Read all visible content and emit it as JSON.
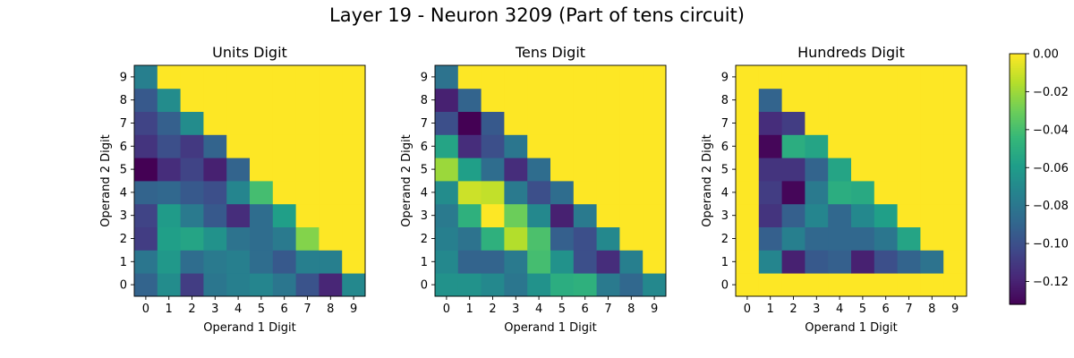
{
  "title": "Layer 19 - Neuron 3209 (Part of tens circuit)",
  "colormap": "viridis",
  "colorbar": {
    "min": -0.132,
    "max": 0.0,
    "ticks": [
      0.0,
      -0.02,
      -0.04,
      -0.06,
      -0.08,
      -0.1,
      -0.12
    ],
    "tick_labels": [
      "0.00",
      "−0.02",
      "−0.04",
      "−0.06",
      "−0.08",
      "−0.10",
      "−0.12"
    ]
  },
  "chart_data": [
    {
      "type": "heatmap",
      "title": "Units Digit",
      "xlabel": "Operand 1 Digit",
      "ylabel": "Operand 2 Digit",
      "x_categories": [
        "0",
        "1",
        "2",
        "3",
        "4",
        "5",
        "6",
        "7",
        "8",
        "9"
      ],
      "y_categories": [
        "0",
        "1",
        "2",
        "3",
        "4",
        "5",
        "6",
        "7",
        "8",
        "9"
      ],
      "y_axis_origin": "bottom",
      "values": [
        [
          -0.09,
          -0.068,
          -0.108,
          -0.08,
          -0.075,
          -0.072,
          -0.08,
          -0.098,
          -0.118,
          -0.07
        ],
        [
          -0.08,
          -0.062,
          -0.085,
          -0.078,
          -0.075,
          -0.085,
          -0.095,
          -0.075,
          -0.075,
          0.0
        ],
        [
          -0.108,
          -0.058,
          -0.055,
          -0.065,
          -0.082,
          -0.085,
          -0.078,
          -0.025,
          0.0,
          0.0
        ],
        [
          -0.105,
          -0.06,
          -0.078,
          -0.095,
          -0.115,
          -0.085,
          -0.058,
          0.0,
          0.0,
          0.0
        ],
        [
          -0.09,
          -0.088,
          -0.095,
          -0.1,
          -0.072,
          -0.04,
          0.0,
          0.0,
          0.0,
          0.0
        ],
        [
          -0.132,
          -0.115,
          -0.105,
          -0.12,
          -0.09,
          0.0,
          0.0,
          0.0,
          0.0,
          0.0
        ],
        [
          -0.112,
          -0.1,
          -0.11,
          -0.09,
          0.0,
          0.0,
          0.0,
          0.0,
          0.0,
          0.0
        ],
        [
          -0.105,
          -0.092,
          -0.068,
          0.0,
          0.0,
          0.0,
          0.0,
          0.0,
          0.0,
          0.0
        ],
        [
          -0.095,
          -0.068,
          0.0,
          0.0,
          0.0,
          0.0,
          0.0,
          0.0,
          0.0,
          0.0
        ],
        [
          -0.075,
          0.0,
          0.0,
          0.0,
          0.0,
          0.0,
          0.0,
          0.0,
          0.0,
          0.0
        ]
      ]
    },
    {
      "type": "heatmap",
      "title": "Tens Digit",
      "xlabel": "Operand 1 Digit",
      "ylabel": "Operand 2 Digit",
      "x_categories": [
        "0",
        "1",
        "2",
        "3",
        "4",
        "5",
        "6",
        "7",
        "8",
        "9"
      ],
      "y_categories": [
        "0",
        "1",
        "2",
        "3",
        "4",
        "5",
        "6",
        "7",
        "8",
        "9"
      ],
      "y_axis_origin": "bottom",
      "values": [
        [
          -0.065,
          -0.065,
          -0.07,
          -0.08,
          -0.065,
          -0.05,
          -0.048,
          -0.078,
          -0.088,
          -0.07
        ],
        [
          -0.07,
          -0.09,
          -0.09,
          -0.078,
          -0.04,
          -0.065,
          -0.1,
          -0.115,
          -0.075,
          0.0
        ],
        [
          -0.075,
          -0.082,
          -0.048,
          -0.015,
          -0.038,
          -0.092,
          -0.1,
          -0.07,
          0.0,
          0.0
        ],
        [
          -0.078,
          -0.048,
          0.0,
          -0.03,
          -0.07,
          -0.12,
          -0.078,
          0.0,
          0.0,
          0.0
        ],
        [
          -0.068,
          -0.01,
          -0.012,
          -0.078,
          -0.1,
          -0.085,
          0.0,
          0.0,
          0.0,
          0.0
        ],
        [
          -0.02,
          -0.058,
          -0.085,
          -0.115,
          -0.085,
          0.0,
          0.0,
          0.0,
          0.0,
          0.0
        ],
        [
          -0.055,
          -0.115,
          -0.1,
          -0.08,
          0.0,
          0.0,
          0.0,
          0.0,
          0.0,
          0.0
        ],
        [
          -0.1,
          -0.132,
          -0.095,
          0.0,
          0.0,
          0.0,
          0.0,
          0.0,
          0.0,
          0.0
        ],
        [
          -0.12,
          -0.09,
          0.0,
          0.0,
          0.0,
          0.0,
          0.0,
          0.0,
          0.0,
          0.0
        ],
        [
          -0.082,
          0.0,
          0.0,
          0.0,
          0.0,
          0.0,
          0.0,
          0.0,
          0.0,
          0.0
        ]
      ]
    },
    {
      "type": "heatmap",
      "title": "Hundreds Digit",
      "xlabel": "Operand 1 Digit",
      "ylabel": "Operand 2 Digit",
      "x_categories": [
        "0",
        "1",
        "2",
        "3",
        "4",
        "5",
        "6",
        "7",
        "8",
        "9"
      ],
      "y_categories": [
        "0",
        "1",
        "2",
        "3",
        "4",
        "5",
        "6",
        "7",
        "8",
        "9"
      ],
      "y_axis_origin": "bottom",
      "values": [
        [
          0.0,
          0.0,
          0.0,
          0.0,
          0.0,
          0.0,
          0.0,
          0.0,
          0.0,
          0.0
        ],
        [
          0.0,
          -0.072,
          -0.12,
          -0.095,
          -0.092,
          -0.12,
          -0.1,
          -0.09,
          -0.082,
          0.0
        ],
        [
          0.0,
          -0.092,
          -0.075,
          -0.088,
          -0.088,
          -0.088,
          -0.08,
          -0.055,
          0.0,
          0.0
        ],
        [
          0.0,
          -0.112,
          -0.092,
          -0.072,
          -0.088,
          -0.07,
          -0.058,
          0.0,
          0.0,
          0.0
        ],
        [
          0.0,
          -0.108,
          -0.13,
          -0.078,
          -0.05,
          -0.052,
          0.0,
          0.0,
          0.0,
          0.0
        ],
        [
          0.0,
          -0.112,
          -0.112,
          -0.09,
          -0.055,
          0.0,
          0.0,
          0.0,
          0.0,
          0.0
        ],
        [
          0.0,
          -0.13,
          -0.05,
          -0.055,
          0.0,
          0.0,
          0.0,
          0.0,
          0.0,
          0.0
        ],
        [
          0.0,
          -0.115,
          -0.108,
          0.0,
          0.0,
          0.0,
          0.0,
          0.0,
          0.0,
          0.0
        ],
        [
          0.0,
          -0.09,
          0.0,
          0.0,
          0.0,
          0.0,
          0.0,
          0.0,
          0.0,
          0.0
        ],
        [
          0.0,
          0.0,
          0.0,
          0.0,
          0.0,
          0.0,
          0.0,
          0.0,
          0.0,
          0.0
        ]
      ]
    }
  ]
}
